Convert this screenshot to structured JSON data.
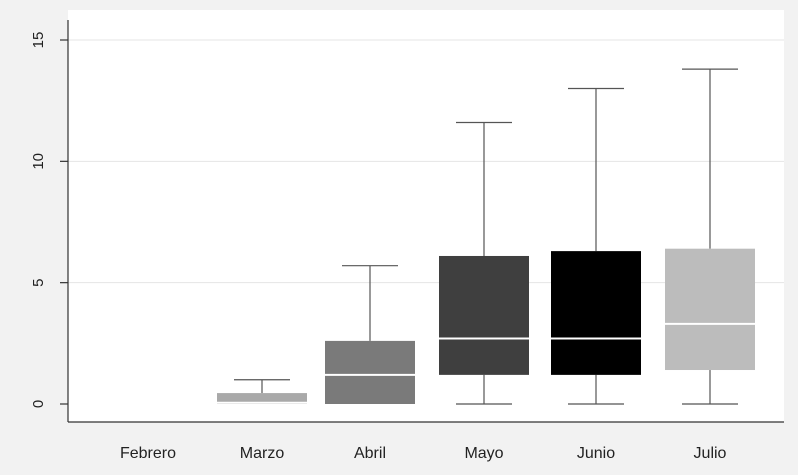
{
  "chart_data": {
    "type": "boxplot",
    "title": "",
    "xlabel": "",
    "ylabel": "",
    "ylim": [
      0,
      15
    ],
    "y_ticks": [
      "0",
      "5",
      "10",
      "15"
    ],
    "grid": true,
    "categories": [
      "Febrero",
      "Marzo",
      "Abril",
      "Mayo",
      "Junio",
      "Julio"
    ],
    "boxes": [
      {
        "category": "Febrero",
        "min": 0,
        "q1": 0,
        "median": 0,
        "q3": 0,
        "max": 0,
        "color": "#9a9a9a"
      },
      {
        "category": "Marzo",
        "min": 0,
        "q1": 0,
        "median": 0.05,
        "q3": 0.45,
        "max": 1.0,
        "color": "#a9a9a9"
      },
      {
        "category": "Abril",
        "min": 0,
        "q1": 0,
        "median": 1.2,
        "q3": 2.6,
        "max": 5.7,
        "color": "#7a7a7a"
      },
      {
        "category": "Mayo",
        "min": 0,
        "q1": 1.2,
        "median": 2.7,
        "q3": 6.1,
        "max": 11.6,
        "color": "#3f3f3f"
      },
      {
        "category": "Junio",
        "min": 0,
        "q1": 1.2,
        "median": 2.7,
        "q3": 6.3,
        "max": 13.0,
        "color": "#000000"
      },
      {
        "category": "Julio",
        "min": 0,
        "q1": 1.4,
        "median": 3.3,
        "q3": 6.4,
        "max": 13.8,
        "color": "#bcbcbc"
      }
    ]
  }
}
